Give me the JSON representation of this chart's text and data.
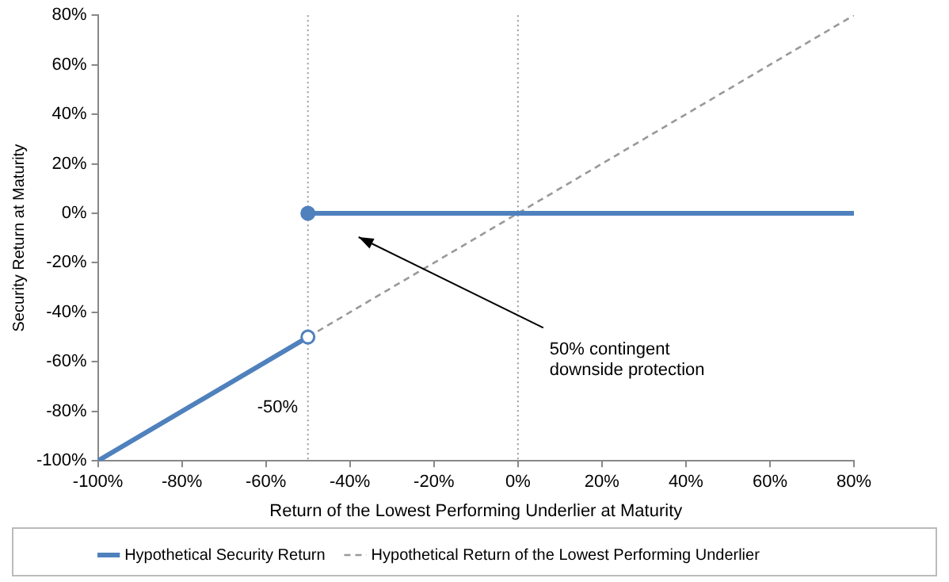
{
  "chart_data": {
    "type": "line",
    "xlabel": "Return of the Lowest Performing Underlier at Maturity",
    "ylabel": "Security Return at Maturity",
    "xlim": [
      -100,
      80
    ],
    "xticks": [
      {
        "value": -100,
        "label": "-100%"
      },
      {
        "value": -80,
        "label": "-80%"
      },
      {
        "value": -60,
        "label": "-60%"
      },
      {
        "value": -40,
        "label": "-40%"
      },
      {
        "value": -20,
        "label": "-20%"
      },
      {
        "value": 0,
        "label": "0%"
      },
      {
        "value": 20,
        "label": "20%"
      },
      {
        "value": 40,
        "label": "40%"
      },
      {
        "value": 60,
        "label": "60%"
      },
      {
        "value": 80,
        "label": "80%"
      }
    ],
    "ylim": [
      -100,
      80
    ],
    "yticks": [
      {
        "value": -100,
        "label": "-100%"
      },
      {
        "value": -80,
        "label": "-80%"
      },
      {
        "value": -60,
        "label": "-60%"
      },
      {
        "value": -40,
        "label": "-40%"
      },
      {
        "value": -20,
        "label": "-20%"
      },
      {
        "value": 0,
        "label": "0%"
      },
      {
        "value": 20,
        "label": "20%"
      },
      {
        "value": 40,
        "label": "40%"
      },
      {
        "value": 60,
        "label": "60%"
      },
      {
        "value": 80,
        "label": "80%"
      }
    ],
    "series": [
      {
        "name": "Hypothetical Return of the Lowest Performing Underlier",
        "color": "#999999",
        "line_style": "dashed",
        "marker": "none",
        "x": [
          -100,
          80
        ],
        "values": [
          -100,
          80
        ]
      },
      {
        "name": "Hypothetical Security Return",
        "color": "#4f81bd",
        "line_style": "solid",
        "marker": "none",
        "x": [
          -50,
          80
        ],
        "values": [
          0,
          0
        ]
      },
      {
        "color": "#4f81bd",
        "line_style": "solid",
        "marker": "none",
        "x": [
          -100,
          -50
        ],
        "values": [
          -100,
          -50
        ]
      },
      {
        "type": "scatter",
        "color": "#4f81bd",
        "colors": [
          "#ffffff",
          "#4f81bd"
        ],
        "marker": "circle",
        "x": [
          -50,
          -50
        ],
        "values": [
          -50,
          0
        ]
      }
    ],
    "ref_lines": [
      {
        "axis": "x",
        "value": -50,
        "color": "#999999",
        "line_style": "dotted"
      },
      {
        "axis": "x",
        "value": 0,
        "color": "#999999",
        "line_style": "dotted"
      }
    ],
    "annotations": [
      "-50%",
      "50% contingent\ndownside protection"
    ],
    "grid": false,
    "legend": "bottom"
  }
}
